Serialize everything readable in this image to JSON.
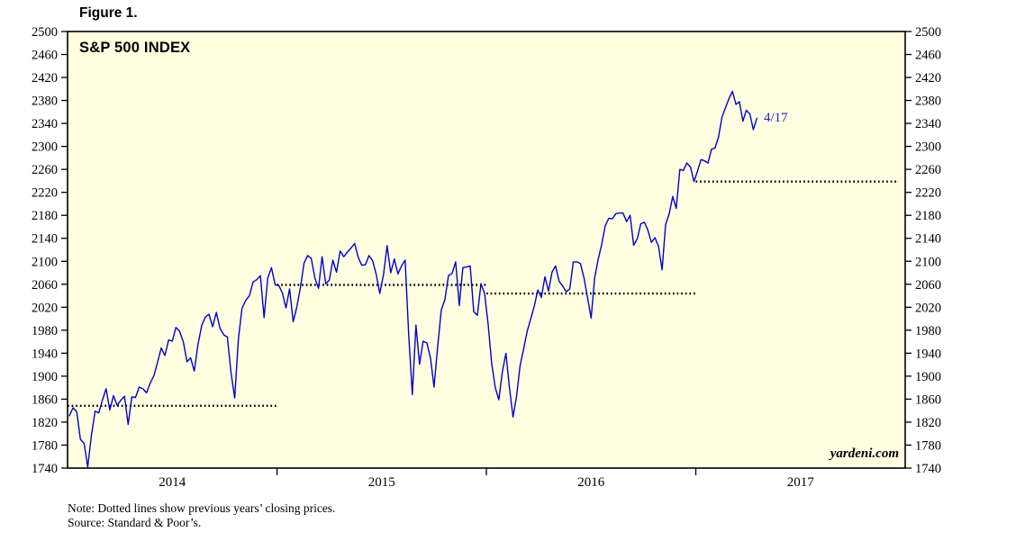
{
  "figure_label": "Figure 1.",
  "chart_title": "S&P 500 INDEX",
  "watermark": "yardeni.com",
  "note": "Note: Dotted lines show previous years’ closing prices.",
  "source": "Source: Standard & Poor’s.",
  "colors": {
    "plot_bg": "#fffee1",
    "line": "#0000cd",
    "dotted": "#000000",
    "frame": "#000000",
    "text": "#000000",
    "annotation": "#2222cc"
  },
  "chart_data": {
    "type": "line",
    "title": "S&P 500 INDEX",
    "x_axis": {
      "min": 2014,
      "max": 2018,
      "boundary_ticks": [
        2015,
        2016,
        2017
      ],
      "year_labels": [
        "2014",
        "2015",
        "2016",
        "2017"
      ]
    },
    "y_axis": {
      "min": 1740,
      "max": 2500,
      "step": 40,
      "label_sides": "both"
    },
    "annotation": {
      "text": "4/17",
      "x": 2017.33,
      "y": 2349
    },
    "series": [
      {
        "name": "S&P 500 Index",
        "sampling": "approx. weekly closes",
        "segments": [
          {
            "year": 2014,
            "coverage": 1,
            "values": [
              1831,
              1845,
              1838,
              1790,
              1783,
              1742,
              1797,
              1839,
              1836,
              1859,
              1878,
              1841,
              1866,
              1849,
              1858,
              1865,
              1816,
              1864,
              1863,
              1881,
              1878,
              1871,
              1888,
              1901,
              1924,
              1949,
              1936,
              1963,
              1961,
              1985,
              1978,
              1960,
              1925,
              1932,
              1909,
              1955,
              1988,
              2003,
              2008,
              1986,
              2011,
              1983,
              1972,
              1968,
              1906,
              1862,
              1965,
              2018,
              2032,
              2040,
              2064,
              2068,
              2075,
              2002,
              2071,
              2089,
              2059
            ]
          },
          {
            "year": 2015,
            "coverage": 1,
            "values": [
              2058,
              2045,
              2019,
              2052,
              1995,
              2020,
              2055,
              2097,
              2110,
              2105,
              2071,
              2053,
              2108,
              2061,
              2067,
              2102,
              2081,
              2118,
              2108,
              2116,
              2123,
              2131,
              2107,
              2093,
              2094,
              2110,
              2101,
              2077,
              2044,
              2077,
              2127,
              2080,
              2104,
              2078,
              2092,
              2102,
              1971,
              1868,
              1989,
              1921,
              1961,
              1958,
              1932,
              1881,
              1951,
              2015,
              2033,
              2075,
              2079,
              2099,
              2023,
              2089,
              2090,
              2092,
              2012,
              2006,
              2061,
              2044
            ]
          },
          {
            "year": 2016,
            "coverage": 1,
            "values": [
              1990,
              1922,
              1880,
              1859,
              1907,
              1940,
              1880,
              1829,
              1865,
              1918,
              1948,
              1978,
              2000,
              2022,
              2050,
              2037,
              2073,
              2048,
              2081,
              2092,
              2065,
              2057,
              2047,
              2052,
              2099,
              2099,
              2096,
              2071,
              2037,
              2001,
              2071,
              2103,
              2130,
              2162,
              2175,
              2174,
              2183,
              2184,
              2184,
              2169,
              2180,
              2128,
              2139,
              2165,
              2168,
              2154,
              2133,
              2141,
              2126,
              2085,
              2164,
              2182,
              2213,
              2192,
              2260,
              2258,
              2271,
              2264,
              2239
            ]
          },
          {
            "year": 2017,
            "coverage": 0.3,
            "values": [
              2257,
              2277,
              2275,
              2271,
              2295,
              2297,
              2316,
              2351,
              2367,
              2383,
              2396,
              2373,
              2378,
              2344,
              2363,
              2356,
              2329,
              2349
            ]
          }
        ]
      }
    ],
    "dotted_lines": [
      {
        "label": "2013 year-end close",
        "value": 1848.36,
        "x_start": 2014,
        "x_end": 2015
      },
      {
        "label": "2014 year-end close",
        "value": 2058.9,
        "x_start": 2015,
        "x_end": 2016
      },
      {
        "label": "2015 year-end close",
        "value": 2043.94,
        "x_start": 2016,
        "x_end": 2017
      },
      {
        "label": "2016 year-end close",
        "value": 2238.83,
        "x_start": 2017,
        "x_end": 2017.97
      }
    ]
  }
}
